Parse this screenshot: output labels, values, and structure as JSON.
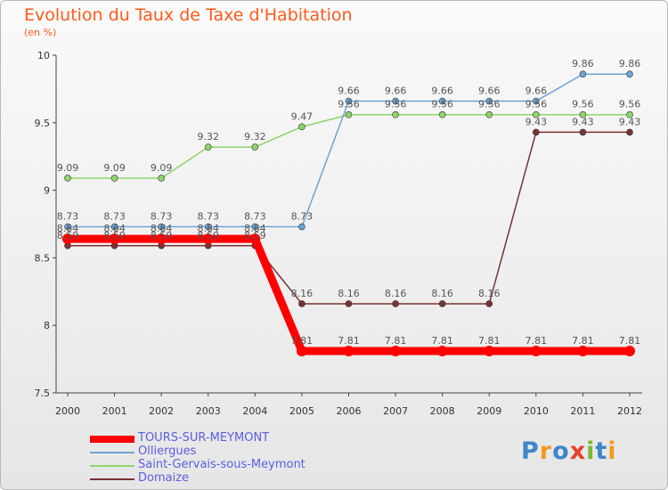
{
  "header": {
    "title": "Evolution du Taux de Taxe d'Habitation",
    "subtitle": "(en %)"
  },
  "chart_data": {
    "type": "line",
    "x": [
      "2000",
      "2001",
      "2002",
      "2003",
      "2004",
      "2005",
      "2006",
      "2007",
      "2008",
      "2009",
      "2010",
      "2011",
      "2012"
    ],
    "ylim": [
      7.5,
      10
    ],
    "yticks": [
      "7.5",
      "8",
      "8.5",
      "9",
      "9.5",
      "10"
    ],
    "grid": false,
    "legend_position": "bottom-left",
    "series": [
      {
        "name": "TOURS-SUR-MEYMONT",
        "color": "#ff0000",
        "values": [
          8.64,
          8.64,
          8.64,
          8.64,
          8.64,
          7.81,
          7.81,
          7.81,
          7.81,
          7.81,
          7.81,
          7.81,
          7.81
        ]
      },
      {
        "name": "Olliergues",
        "color": "#6ea3d6",
        "values": [
          8.73,
          8.73,
          8.73,
          8.73,
          8.73,
          8.73,
          9.66,
          9.66,
          9.66,
          9.66,
          9.66,
          9.86,
          9.86
        ]
      },
      {
        "name": "Saint-Gervais-sous-Meymont",
        "color": "#8fd46c",
        "values": [
          9.09,
          9.09,
          9.09,
          9.32,
          9.32,
          9.47,
          9.56,
          9.56,
          9.56,
          9.56,
          9.56,
          9.56,
          9.56
        ]
      },
      {
        "name": "Domaize",
        "color": "#7a3333",
        "values": [
          8.59,
          8.59,
          8.59,
          8.59,
          8.59,
          8.16,
          8.16,
          8.16,
          8.16,
          8.16,
          9.43,
          9.43,
          9.43
        ]
      }
    ]
  },
  "legend": {
    "items": [
      {
        "label": "TOURS-SUR-MEYMONT",
        "color": "#ff0000"
      },
      {
        "label": "Olliergues",
        "color": "#6ea3d6"
      },
      {
        "label": "Saint-Gervais-sous-Meymont",
        "color": "#8fd46c"
      },
      {
        "label": "Domaize",
        "color": "#7a3333"
      }
    ]
  },
  "logo": {
    "text": "Proxiti"
  }
}
